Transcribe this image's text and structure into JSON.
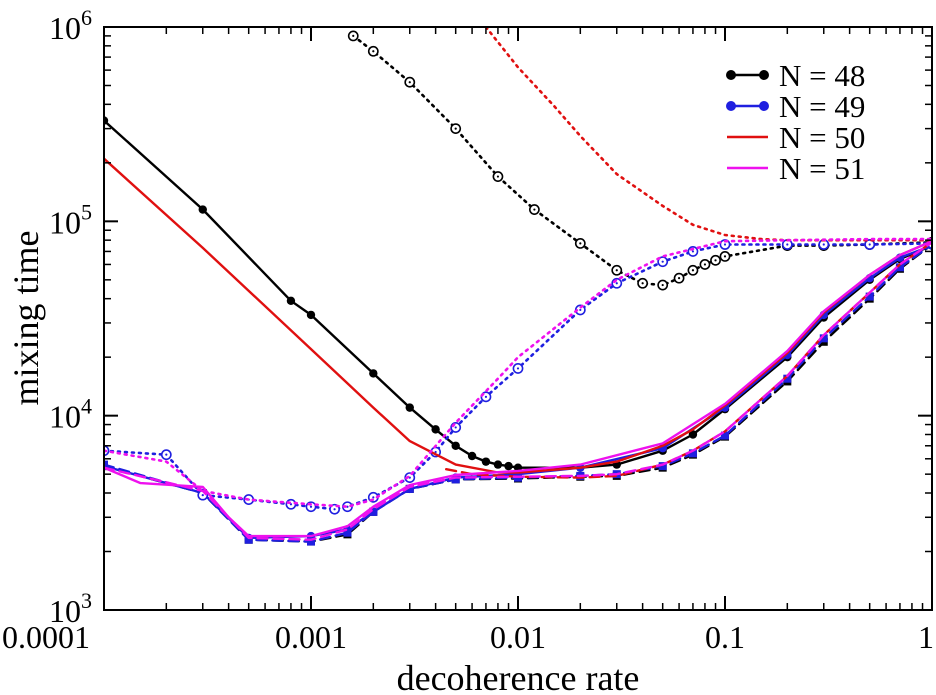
{
  "chart_data": {
    "type": "line",
    "xscale": "log",
    "yscale": "log",
    "xlabel": "decoherence rate",
    "ylabel": "mixing time",
    "xlim": [
      0.0001,
      1
    ],
    "ylim": [
      1000,
      1000000
    ],
    "xticks": [
      {
        "value": 0.0001,
        "label": "0.0001"
      },
      {
        "value": 0.001,
        "label": "0.001"
      },
      {
        "value": 0.01,
        "label": "0.01"
      },
      {
        "value": 0.1,
        "label": "0.1"
      },
      {
        "value": 1,
        "label": "1"
      }
    ],
    "yticks": [
      {
        "value": 1000,
        "base": "10",
        "exp": "3"
      },
      {
        "value": 10000,
        "base": "10",
        "exp": "4"
      },
      {
        "value": 100000,
        "base": "10",
        "exp": "5"
      },
      {
        "value": 1000000,
        "base": "10",
        "exp": "6"
      }
    ],
    "grid": false,
    "legend_position": "top-right",
    "legend": [
      {
        "label": "N = 48",
        "color": "#000000",
        "marker": true
      },
      {
        "label": "N = 49",
        "color": "#1f1fe0",
        "marker": true
      },
      {
        "label": "N = 50",
        "color": "#e01010",
        "marker": false
      },
      {
        "label": "N = 51",
        "color": "#ee11ee",
        "marker": false
      }
    ],
    "series": [
      {
        "name": "N = 48",
        "color": "#000000",
        "style": "solid",
        "marker": "filled-circle",
        "x": [
          0.0001,
          0.0003,
          0.0008,
          0.001,
          0.002,
          0.003,
          0.004,
          0.005,
          0.006,
          0.007,
          0.008,
          0.009,
          0.01,
          0.02,
          0.03,
          0.05,
          0.07,
          0.1,
          0.2,
          0.3,
          0.5,
          0.7,
          1
        ],
        "y": [
          330000,
          115000,
          39000,
          33000,
          16500,
          11000,
          8500,
          7000,
          6200,
          5800,
          5600,
          5500,
          5400,
          5400,
          5600,
          6600,
          8000,
          10800,
          20000,
          32000,
          50000,
          64000,
          75000
        ]
      },
      {
        "name": "N = 48",
        "color": "#000000",
        "style": "dashed",
        "marker": "filled-square",
        "x": [
          0.0001,
          0.0003,
          0.0005,
          0.001,
          0.0015,
          0.002,
          0.003,
          0.005,
          0.01,
          0.02,
          0.03,
          0.05,
          0.07,
          0.1,
          0.2,
          0.3,
          0.5,
          0.7,
          1
        ],
        "y": [
          5500,
          4000,
          2300,
          2250,
          2450,
          3200,
          4200,
          4700,
          4750,
          4850,
          4900,
          5400,
          6300,
          7800,
          15000,
          24000,
          40000,
          57000,
          76000
        ]
      },
      {
        "name": "N = 48",
        "color": "#000000",
        "style": "dotted",
        "marker": "open-circle",
        "x": [
          0.0016,
          0.002,
          0.003,
          0.005,
          0.008,
          0.012,
          0.02,
          0.03,
          0.04,
          0.05,
          0.06,
          0.07,
          0.08,
          0.09,
          0.1,
          0.2,
          0.3,
          0.5,
          1
        ],
        "y": [
          900000,
          750000,
          520000,
          300000,
          170000,
          115000,
          77000,
          56000,
          48000,
          47000,
          51000,
          56000,
          60000,
          63000,
          66000,
          75000,
          75000,
          76000,
          78000
        ]
      },
      {
        "name": "N = 49",
        "color": "#1f1fe0",
        "style": "solid",
        "marker": "filled-circle",
        "x": [
          0.0001,
          0.0003,
          0.0005,
          0.001,
          0.0015,
          0.002,
          0.003,
          0.005,
          0.01,
          0.02,
          0.05,
          0.1,
          0.2,
          0.3,
          0.5,
          0.7,
          1
        ],
        "y": [
          5500,
          4000,
          2350,
          2400,
          2600,
          3200,
          4200,
          4800,
          5000,
          5400,
          6800,
          11000,
          20500,
          33000,
          51000,
          65000,
          75000
        ]
      },
      {
        "name": "N = 49",
        "color": "#1f1fe0",
        "style": "dashed",
        "marker": "filled-square",
        "x": [
          0.0001,
          0.0003,
          0.0005,
          0.001,
          0.0015,
          0.002,
          0.003,
          0.005,
          0.01,
          0.02,
          0.03,
          0.05,
          0.07,
          0.1,
          0.2,
          0.3,
          0.5,
          0.7,
          1
        ],
        "y": [
          5600,
          4000,
          2300,
          2250,
          2500,
          3200,
          4200,
          4700,
          4800,
          4900,
          5000,
          5500,
          6400,
          7900,
          15500,
          25000,
          41000,
          58000,
          76000
        ]
      },
      {
        "name": "N = 49",
        "color": "#1f1fe0",
        "style": "dotted",
        "marker": "open-circle",
        "x": [
          0.0001,
          0.0002,
          0.0003,
          0.0005,
          0.0008,
          0.001,
          0.0013,
          0.0015,
          0.002,
          0.003,
          0.004,
          0.005,
          0.007,
          0.01,
          0.02,
          0.03,
          0.05,
          0.07,
          0.1,
          0.2,
          0.3,
          0.5,
          1
        ],
        "y": [
          6600,
          6300,
          3900,
          3700,
          3500,
          3400,
          3300,
          3400,
          3800,
          4800,
          6500,
          8700,
          12500,
          17500,
          35000,
          48000,
          62000,
          70000,
          76000,
          76000,
          76000,
          76000,
          77000
        ]
      },
      {
        "name": "N = 50",
        "color": "#e01010",
        "style": "solid",
        "marker": "none",
        "x": [
          0.0001,
          0.0003,
          0.001,
          0.002,
          0.003,
          0.005,
          0.008,
          0.01,
          0.02,
          0.03,
          0.05,
          0.07,
          0.1,
          0.2,
          0.3,
          0.5,
          0.7,
          1
        ],
        "y": [
          210000,
          73000,
          22000,
          11000,
          7400,
          5600,
          5100,
          5100,
          5400,
          5800,
          7000,
          8500,
          11300,
          21000,
          34000,
          53000,
          67000,
          79000
        ]
      },
      {
        "name": "N = 50",
        "color": "#e01010",
        "style": "dashed",
        "marker": "none",
        "x": [
          0.0045,
          0.006,
          0.01,
          0.02,
          0.03,
          0.05,
          0.07,
          0.1,
          0.2,
          0.3,
          0.5,
          0.7,
          1
        ],
        "y": [
          5300,
          5000,
          4850,
          4800,
          4900,
          5600,
          6600,
          8300,
          16000,
          26000,
          43000,
          60000,
          78000
        ]
      },
      {
        "name": "N = 50",
        "color": "#e01010",
        "style": "dotted",
        "marker": "none",
        "x": [
          0.007,
          0.01,
          0.015,
          0.02,
          0.03,
          0.05,
          0.07,
          0.1,
          0.15,
          0.2,
          0.5,
          1
        ],
        "y": [
          1000000,
          620000,
          390000,
          275000,
          175000,
          120000,
          96000,
          85000,
          81000,
          80000,
          80000,
          80000
        ]
      },
      {
        "name": "N = 51",
        "color": "#ee11ee",
        "style": "solid",
        "marker": "none",
        "x": [
          0.0001,
          0.00015,
          0.0003,
          0.0004,
          0.0005,
          0.001,
          0.0015,
          0.002,
          0.003,
          0.005,
          0.01,
          0.02,
          0.05,
          0.1,
          0.2,
          0.3,
          0.5,
          0.7,
          1
        ],
        "y": [
          5400,
          4500,
          4300,
          3000,
          2400,
          2400,
          2700,
          3400,
          4400,
          4950,
          5200,
          5600,
          7200,
          11500,
          21500,
          34500,
          53000,
          67000,
          79000
        ]
      },
      {
        "name": "N = 51",
        "color": "#ee11ee",
        "style": "dashed",
        "marker": "none",
        "x": [
          0.0001,
          0.0003,
          0.0005,
          0.001,
          0.0015,
          0.002,
          0.003,
          0.005,
          0.01,
          0.02,
          0.03,
          0.05,
          0.07,
          0.1,
          0.2,
          0.3,
          0.5,
          0.7,
          1
        ],
        "y": [
          5400,
          4100,
          2350,
          2300,
          2600,
          3300,
          4300,
          4800,
          4850,
          4900,
          5000,
          5600,
          6600,
          8300,
          16000,
          26000,
          43000,
          60000,
          78000
        ]
      },
      {
        "name": "N = 51",
        "color": "#ee11ee",
        "style": "dotted",
        "marker": "none",
        "x": [
          0.0001,
          0.0002,
          0.0003,
          0.0005,
          0.001,
          0.0015,
          0.002,
          0.003,
          0.005,
          0.008,
          0.01,
          0.02,
          0.03,
          0.05,
          0.1,
          0.2,
          0.5,
          1
        ],
        "y": [
          6600,
          5800,
          4100,
          3700,
          3500,
          3400,
          3700,
          4900,
          9200,
          15500,
          20000,
          36000,
          50000,
          66000,
          79000,
          80000,
          81000,
          81000
        ]
      }
    ]
  }
}
